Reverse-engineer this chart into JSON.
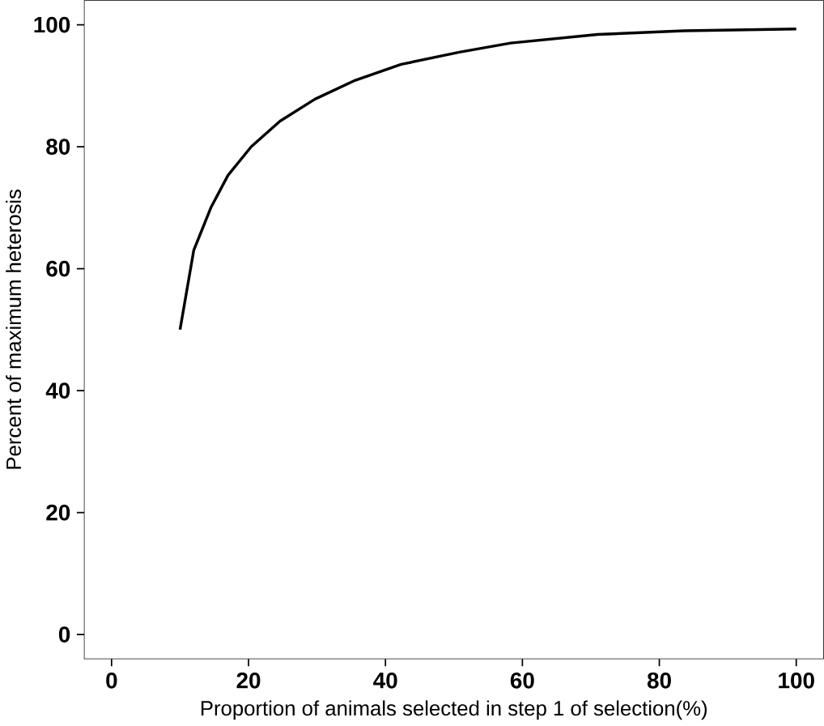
{
  "chart_data": {
    "type": "line",
    "xlabel": "Proportion of animals selected in step 1 of selection(%)",
    "ylabel": "Percent of maximum heterosis",
    "x": [
      10,
      12,
      14.5,
      17,
      20.4,
      24.6,
      29.7,
      35.6,
      42.3,
      50.8,
      58.3,
      71,
      83.6,
      100
    ],
    "series": [
      {
        "color": "#000000",
        "values": [
          50,
          63,
          70,
          75.3,
          80,
          84.2,
          87.8,
          90.9,
          93.5,
          95.5,
          97,
          98.4,
          99,
          99.3
        ]
      }
    ],
    "xlim": [
      -4,
      104
    ],
    "ylim": [
      -4,
      104
    ],
    "xticks": [
      0,
      20,
      40,
      60,
      80,
      100
    ],
    "yticks": [
      0,
      20,
      40,
      60,
      80,
      100
    ],
    "grid": false,
    "marker": "none",
    "line_style": "solid"
  }
}
